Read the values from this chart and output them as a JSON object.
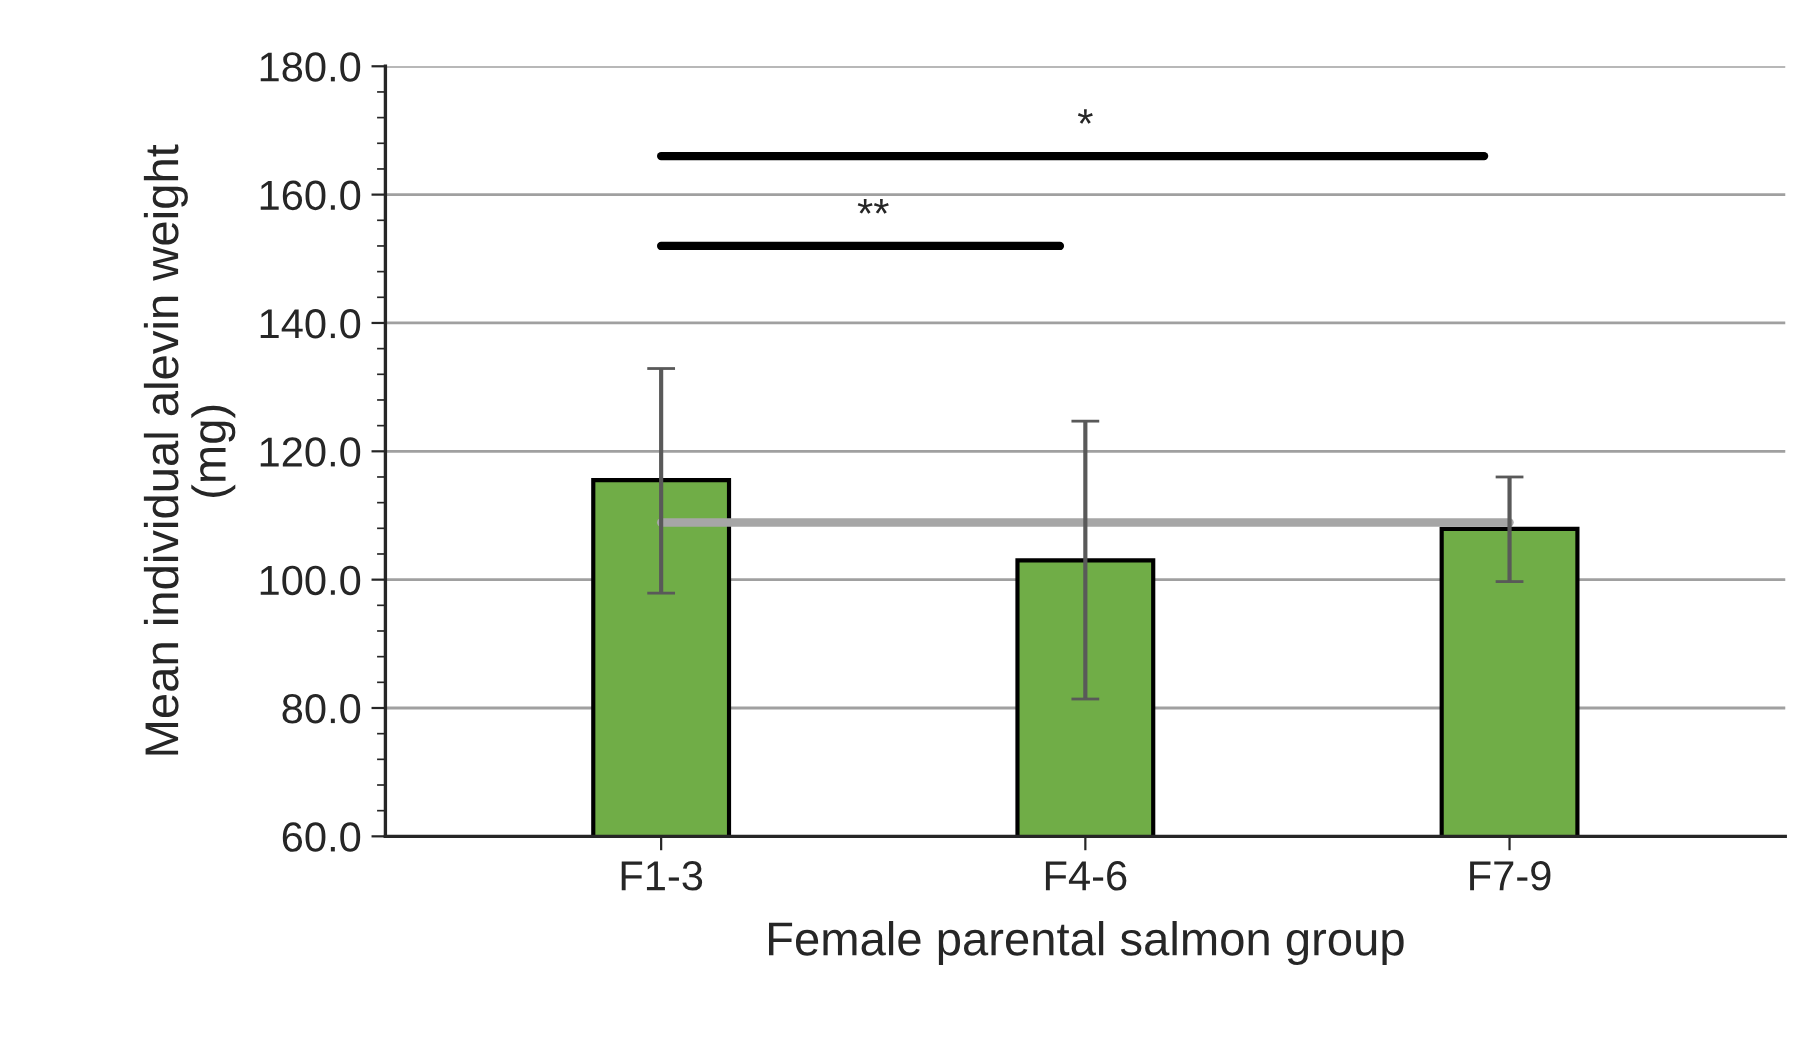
{
  "chart_data": {
    "type": "bar",
    "xlabel": "Female parental salmon group",
    "ylabel": "Mean individual alevin weight\n(mg)",
    "categories": [
      "F1-3",
      "F4-6",
      "F7-9"
    ],
    "series": [
      {
        "color": "#70ad47",
        "values": [
          115.5,
          103.0,
          107.9
        ],
        "errors": [
          [
            97.9,
            132.9
          ],
          [
            81.4,
            124.7
          ],
          [
            99.7,
            116.0
          ]
        ]
      },
      {
        "type": "line",
        "color": "#a6a6a6",
        "values": [
          108.9,
          108.9,
          108.9
        ],
        "marker": "none"
      }
    ],
    "ylim": [
      60,
      180
    ],
    "yticks": [
      {
        "value": 60,
        "label": "60.0"
      },
      {
        "value": 80,
        "label": "80.0"
      },
      {
        "value": 100,
        "label": "100.0"
      },
      {
        "value": 120,
        "label": "120.0"
      },
      {
        "value": 140,
        "label": "140.0"
      },
      {
        "value": 160,
        "label": "160.0"
      },
      {
        "value": 180,
        "label": "180.0"
      }
    ],
    "grid": "y",
    "annotations": [
      "*",
      "**"
    ]
  }
}
